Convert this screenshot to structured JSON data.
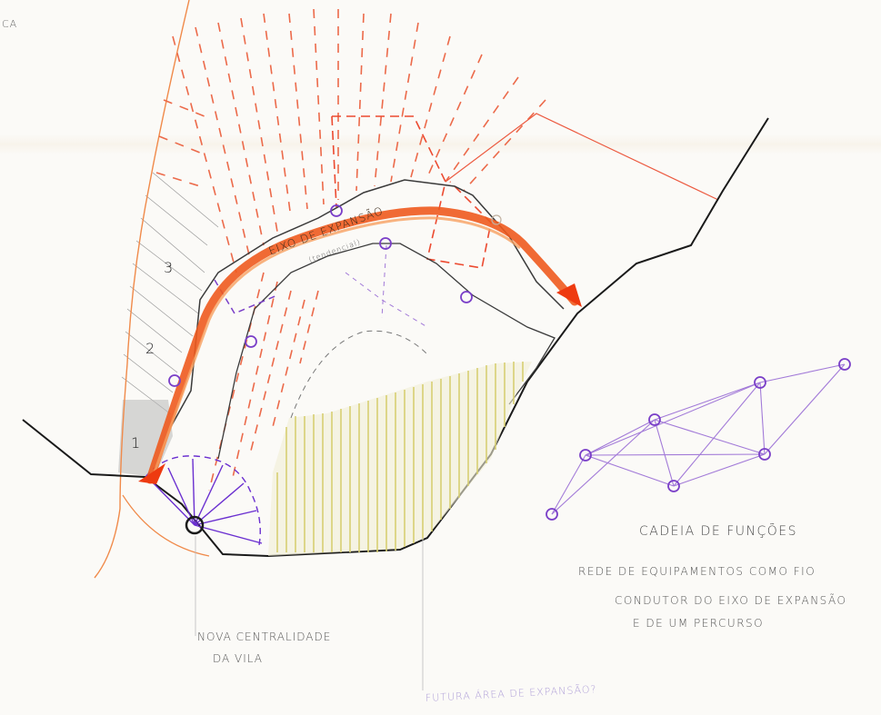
{
  "corner_fragment": "CA",
  "zones": [
    "1",
    "2",
    "3"
  ],
  "labels": {
    "eixo": "EIXO DE EXPANSÃO",
    "eixo_sub": "(tendencial)",
    "cadeia": "CADEIA DE FUNÇÕES",
    "rede_line1": "REDE DE EQUIPAMENTOS COMO FIO",
    "rede_line2": "CONDUTOR DO EIXO DE EXPANSÃO",
    "rede_line3": "E DE UM PERCURSO",
    "nova_line1": "NOVA CENTRALIDADE",
    "nova_line2": "DA VILA",
    "futura": "FUTURA ÁREA DE EXPANSÃO?"
  },
  "colors": {
    "ink": "#222222",
    "pencil": "#6a6a6a",
    "orange": "#ee5a1e",
    "red_dash": "#ec6a4a",
    "purple": "#8a4fd0",
    "yellow": "#d7cf72"
  }
}
